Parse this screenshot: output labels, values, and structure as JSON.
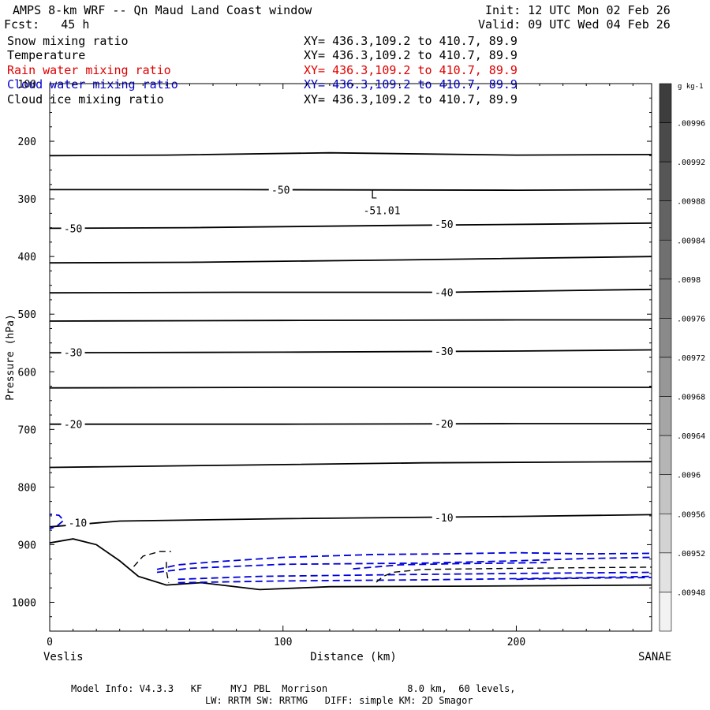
{
  "header": {
    "title": "AMPS 8-km WRF -- Qn Maud Land Coast window",
    "init": "Init: 12 UTC Mon 02 Feb 26",
    "fcst": "Fcst:   45 h",
    "valid": "Valid: 09 UTC Wed 04 Feb 26"
  },
  "fields": [
    {
      "name": "Snow mixing ratio",
      "xy": "XY= 436.3,109.2 to 410.7, 89.9",
      "color": "#000000"
    },
    {
      "name": "Temperature",
      "xy": "XY= 436.3,109.2 to 410.7, 89.9",
      "color": "#000000"
    },
    {
      "name": "Rain water mixing ratio",
      "xy": "XY= 436.3,109.2 to 410.7, 89.9",
      "color": "#e00000"
    },
    {
      "name": "Cloud water mixing ratio",
      "xy": "XY= 436.3,109.2 to 410.7, 89.9",
      "color": "#0000cc"
    },
    {
      "name": "Cloud ice mixing ratio",
      "xy": "XY= 436.3,109.2 to 410.7, 89.9",
      "color": "#000000"
    }
  ],
  "footer": {
    "line1": "Model Info: V4.3.3   KF     MYJ PBL  Morrison              8.0 km,  60 levels,",
    "line2": "LW: RRTM SW: RRTMG   DIFF: simple KM: 2D Smagor"
  },
  "chart_data": {
    "type": "contour",
    "xlabel": "Distance (km)",
    "ylabel": "Pressure (hPa)",
    "xlim": [
      0,
      258
    ],
    "ylim": [
      1050,
      100
    ],
    "x_ticks": [
      0,
      100,
      200
    ],
    "y_ticks": [
      100,
      200,
      300,
      400,
      500,
      600,
      700,
      800,
      900,
      1000
    ],
    "x_end_labels": {
      "left": "Veslis",
      "right": "SANAE"
    },
    "temperature_contours": [
      {
        "points": [
          [
            0,
            225
          ],
          [
            50,
            224
          ],
          [
            120,
            220
          ],
          [
            200,
            224
          ],
          [
            258,
            223
          ]
        ]
      },
      {
        "label": "-50",
        "label_at": [
          99,
          284
        ],
        "points": [
          [
            0,
            284
          ],
          [
            80,
            284
          ],
          [
            200,
            285
          ],
          [
            258,
            284
          ]
        ]
      },
      {
        "label": "-50",
        "label_at": [
          10,
          351
        ],
        "label2": "-50",
        "label2_at": [
          169,
          344
        ],
        "points": [
          [
            0,
            351
          ],
          [
            60,
            350
          ],
          [
            150,
            346
          ],
          [
            210,
            344
          ],
          [
            258,
            342
          ]
        ]
      },
      {
        "points": [
          [
            0,
            411
          ],
          [
            60,
            410
          ],
          [
            150,
            406
          ],
          [
            258,
            400
          ]
        ]
      },
      {
        "label": "-40",
        "label_at": [
          169,
          462
        ],
        "points": [
          [
            0,
            463
          ],
          [
            80,
            462
          ],
          [
            170,
            462
          ],
          [
            258,
            457
          ]
        ]
      },
      {
        "points": [
          [
            0,
            512
          ],
          [
            100,
            511
          ],
          [
            200,
            510
          ],
          [
            258,
            510
          ]
        ]
      },
      {
        "label": "-30",
        "label_at": [
          10,
          566
        ],
        "label2": "-30",
        "label2_at": [
          169,
          564
        ],
        "points": [
          [
            0,
            567
          ],
          [
            100,
            566
          ],
          [
            200,
            564
          ],
          [
            258,
            562
          ]
        ]
      },
      {
        "points": [
          [
            0,
            628
          ],
          [
            100,
            627
          ],
          [
            200,
            627
          ],
          [
            258,
            627
          ]
        ]
      },
      {
        "label": "-20",
        "label_at": [
          10,
          691
        ],
        "label2": "-20",
        "label2_at": [
          169,
          690
        ],
        "points": [
          [
            0,
            691
          ],
          [
            100,
            691
          ],
          [
            200,
            690
          ],
          [
            258,
            690
          ]
        ]
      },
      {
        "points": [
          [
            0,
            766
          ],
          [
            80,
            762
          ],
          [
            160,
            758
          ],
          [
            258,
            756
          ]
        ]
      },
      {
        "label": "-10",
        "label_at": [
          12,
          862
        ],
        "label2": "-10",
        "label2_at": [
          169,
          853
        ],
        "points": [
          [
            0,
            869
          ],
          [
            30,
            859
          ],
          [
            100,
            855
          ],
          [
            200,
            851
          ],
          [
            258,
            848
          ]
        ]
      },
      {
        "points": [
          [
            0,
            897
          ],
          [
            10,
            890
          ],
          [
            20,
            900
          ],
          [
            30,
            928
          ],
          [
            38,
            955
          ],
          [
            50,
            970
          ],
          [
            65,
            966
          ],
          [
            90,
            978
          ],
          [
            120,
            973
          ],
          [
            180,
            972
          ],
          [
            258,
            970
          ]
        ]
      }
    ],
    "temperature_min": {
      "label": "L",
      "value": "-51.01",
      "at": [
        139,
        302
      ]
    },
    "cloud_water_contours": [
      {
        "points": [
          [
            -2,
            846
          ],
          [
            4,
            849
          ],
          [
            6,
            858
          ],
          [
            3,
            868
          ],
          [
            -1,
            874
          ]
        ]
      },
      {
        "points": [
          [
            46,
            943
          ],
          [
            55,
            935
          ],
          [
            70,
            930
          ],
          [
            100,
            922
          ],
          [
            140,
            917
          ],
          [
            170,
            916
          ],
          [
            200,
            914
          ],
          [
            230,
            916
          ],
          [
            258,
            915
          ]
        ]
      },
      {
        "points": [
          [
            46,
            948
          ],
          [
            60,
            941
          ],
          [
            100,
            934
          ],
          [
            160,
            932
          ],
          [
            200,
            928
          ],
          [
            230,
            924
          ],
          [
            258,
            922
          ]
        ]
      },
      {
        "points": [
          [
            55,
            960
          ],
          [
            90,
            955
          ],
          [
            150,
            952
          ],
          [
            200,
            950
          ],
          [
            258,
            948
          ]
        ]
      },
      {
        "points": [
          [
            55,
            966
          ],
          [
            100,
            963
          ],
          [
            160,
            961
          ],
          [
            220,
            958
          ],
          [
            258,
            955
          ]
        ]
      },
      {
        "points": [
          [
            130,
            942
          ],
          [
            150,
            935
          ],
          [
            175,
            933
          ],
          [
            195,
            932
          ],
          [
            213,
            931
          ]
        ]
      },
      {
        "points": [
          [
            200,
            960
          ],
          [
            230,
            958
          ],
          [
            258,
            957
          ]
        ]
      }
    ],
    "cloud_ice_contours": [
      {
        "points": [
          [
            36,
            938
          ],
          [
            40,
            920
          ],
          [
            47,
            912
          ],
          [
            52,
            912
          ]
        ]
      },
      {
        "points": [
          [
            50,
            930
          ],
          [
            50,
            945
          ],
          [
            51,
            966
          ]
        ]
      },
      {
        "points": [
          [
            140,
            965
          ],
          [
            143,
            955
          ],
          [
            147,
            948
          ],
          [
            160,
            943
          ],
          [
            200,
            941
          ],
          [
            230,
            940
          ],
          [
            258,
            939
          ]
        ]
      }
    ],
    "colorbar": {
      "unit": "g kg-1",
      "labels": [
        ".00996",
        ".00992",
        ".00988",
        ".00984",
        ".0098",
        ".00976",
        ".00972",
        ".00968",
        ".00964",
        ".0096",
        ".00956",
        ".00952",
        ".00948"
      ],
      "colors": [
        "#3d3d3d",
        "#4a4a4a",
        "#565656",
        "#636363",
        "#707070",
        "#7d7d7d",
        "#8a8a8a",
        "#979797",
        "#a6a6a6",
        "#b5b5b5",
        "#c4c4c4",
        "#d3d3d3",
        "#e2e2e2",
        "#f2f2f2"
      ]
    }
  }
}
